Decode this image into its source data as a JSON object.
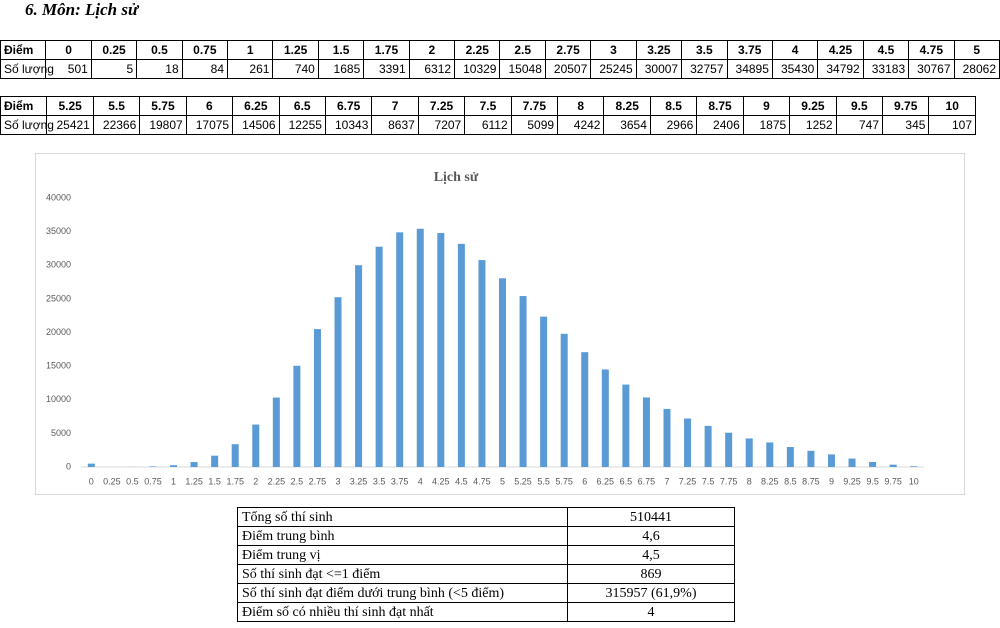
{
  "heading": "6.  Môn: Lịch sử",
  "table1": {
    "label_score": "Điểm",
    "label_count": "Số lượng",
    "scores": [
      "0",
      "0.25",
      "0.5",
      "0.75",
      "1",
      "1.25",
      "1.5",
      "1.75",
      "2",
      "2.25",
      "2.5",
      "2.75",
      "3",
      "3.25",
      "3.5",
      "3.75",
      "4",
      "4.25",
      "4.5",
      "4.75",
      "5"
    ],
    "counts": [
      501,
      5,
      18,
      84,
      261,
      740,
      1685,
      3391,
      6312,
      10329,
      15048,
      20507,
      25245,
      30007,
      32757,
      34895,
      35430,
      34792,
      33183,
      30767,
      28062
    ]
  },
  "table2": {
    "label_score": "Điểm",
    "label_count": "Số lượng",
    "scores": [
      "5.25",
      "5.5",
      "5.75",
      "6",
      "6.25",
      "6.5",
      "6.75",
      "7",
      "7.25",
      "7.5",
      "7.75",
      "8",
      "8.25",
      "8.5",
      "8.75",
      "9",
      "9.25",
      "9.5",
      "9.75",
      "10"
    ],
    "counts": [
      25421,
      22366,
      19807,
      17075,
      14506,
      12255,
      10343,
      8637,
      7207,
      6112,
      5099,
      4242,
      3654,
      2966,
      2406,
      1875,
      1252,
      747,
      345,
      107
    ]
  },
  "chart_data": {
    "type": "bar",
    "title": "Lịch sử",
    "categories": [
      "0",
      "0.25",
      "0.5",
      "0.75",
      "1",
      "1.25",
      "1.5",
      "1.75",
      "2",
      "2.25",
      "2.5",
      "2.75",
      "3",
      "3.25",
      "3.5",
      "3.75",
      "4",
      "4.25",
      "4.5",
      "4.75",
      "5",
      "5.25",
      "5.5",
      "5.75",
      "6",
      "6.25",
      "6.5",
      "6.75",
      "7",
      "7.25",
      "7.5",
      "7.75",
      "8",
      "8.25",
      "8.5",
      "8.75",
      "9",
      "9.25",
      "9.5",
      "9.75",
      "10"
    ],
    "values": [
      501,
      5,
      18,
      84,
      261,
      740,
      1685,
      3391,
      6312,
      10329,
      15048,
      20507,
      25245,
      30007,
      32757,
      34895,
      35430,
      34792,
      33183,
      30767,
      28062,
      25421,
      22366,
      19807,
      17075,
      14506,
      12255,
      10343,
      8637,
      7207,
      6112,
      5099,
      4242,
      3654,
      2966,
      2406,
      1875,
      1252,
      747,
      345,
      107
    ],
    "color": "#5b9bd5",
    "ylim": [
      0,
      40000
    ],
    "yticks": [
      0,
      5000,
      10000,
      15000,
      20000,
      25000,
      30000,
      35000,
      40000
    ],
    "grid": false
  },
  "summary": {
    "rows": [
      [
        "Tổng số thí sinh",
        "510441"
      ],
      [
        "Điểm trung bình",
        "4,6"
      ],
      [
        "Điểm trung vị",
        "4,5"
      ],
      [
        "Số thí sinh đạt <=1 điểm",
        "869"
      ],
      [
        "Số thí sinh đạt điểm dưới trung bình (<5 điểm)",
        "315957 (61,9%)"
      ],
      [
        "Điểm số có nhiều thí sinh đạt nhất",
        "4"
      ]
    ]
  }
}
